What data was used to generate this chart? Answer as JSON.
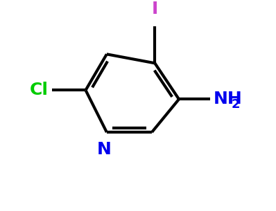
{
  "background_color": "#ffffff",
  "ring_color": "#000000",
  "line_width": 3.0,
  "cl_color": "#00cc00",
  "i_color": "#cc44cc",
  "nh2_color": "#0000ee",
  "n_color": "#0000ee",
  "cl_label": "Cl",
  "i_label": "I",
  "nh2_label": "NH",
  "n_label": "N",
  "subscript_2": "2",
  "font_size_main": 18,
  "font_size_sub": 13,
  "figsize": [
    3.98,
    3.05
  ],
  "dpi": 100
}
